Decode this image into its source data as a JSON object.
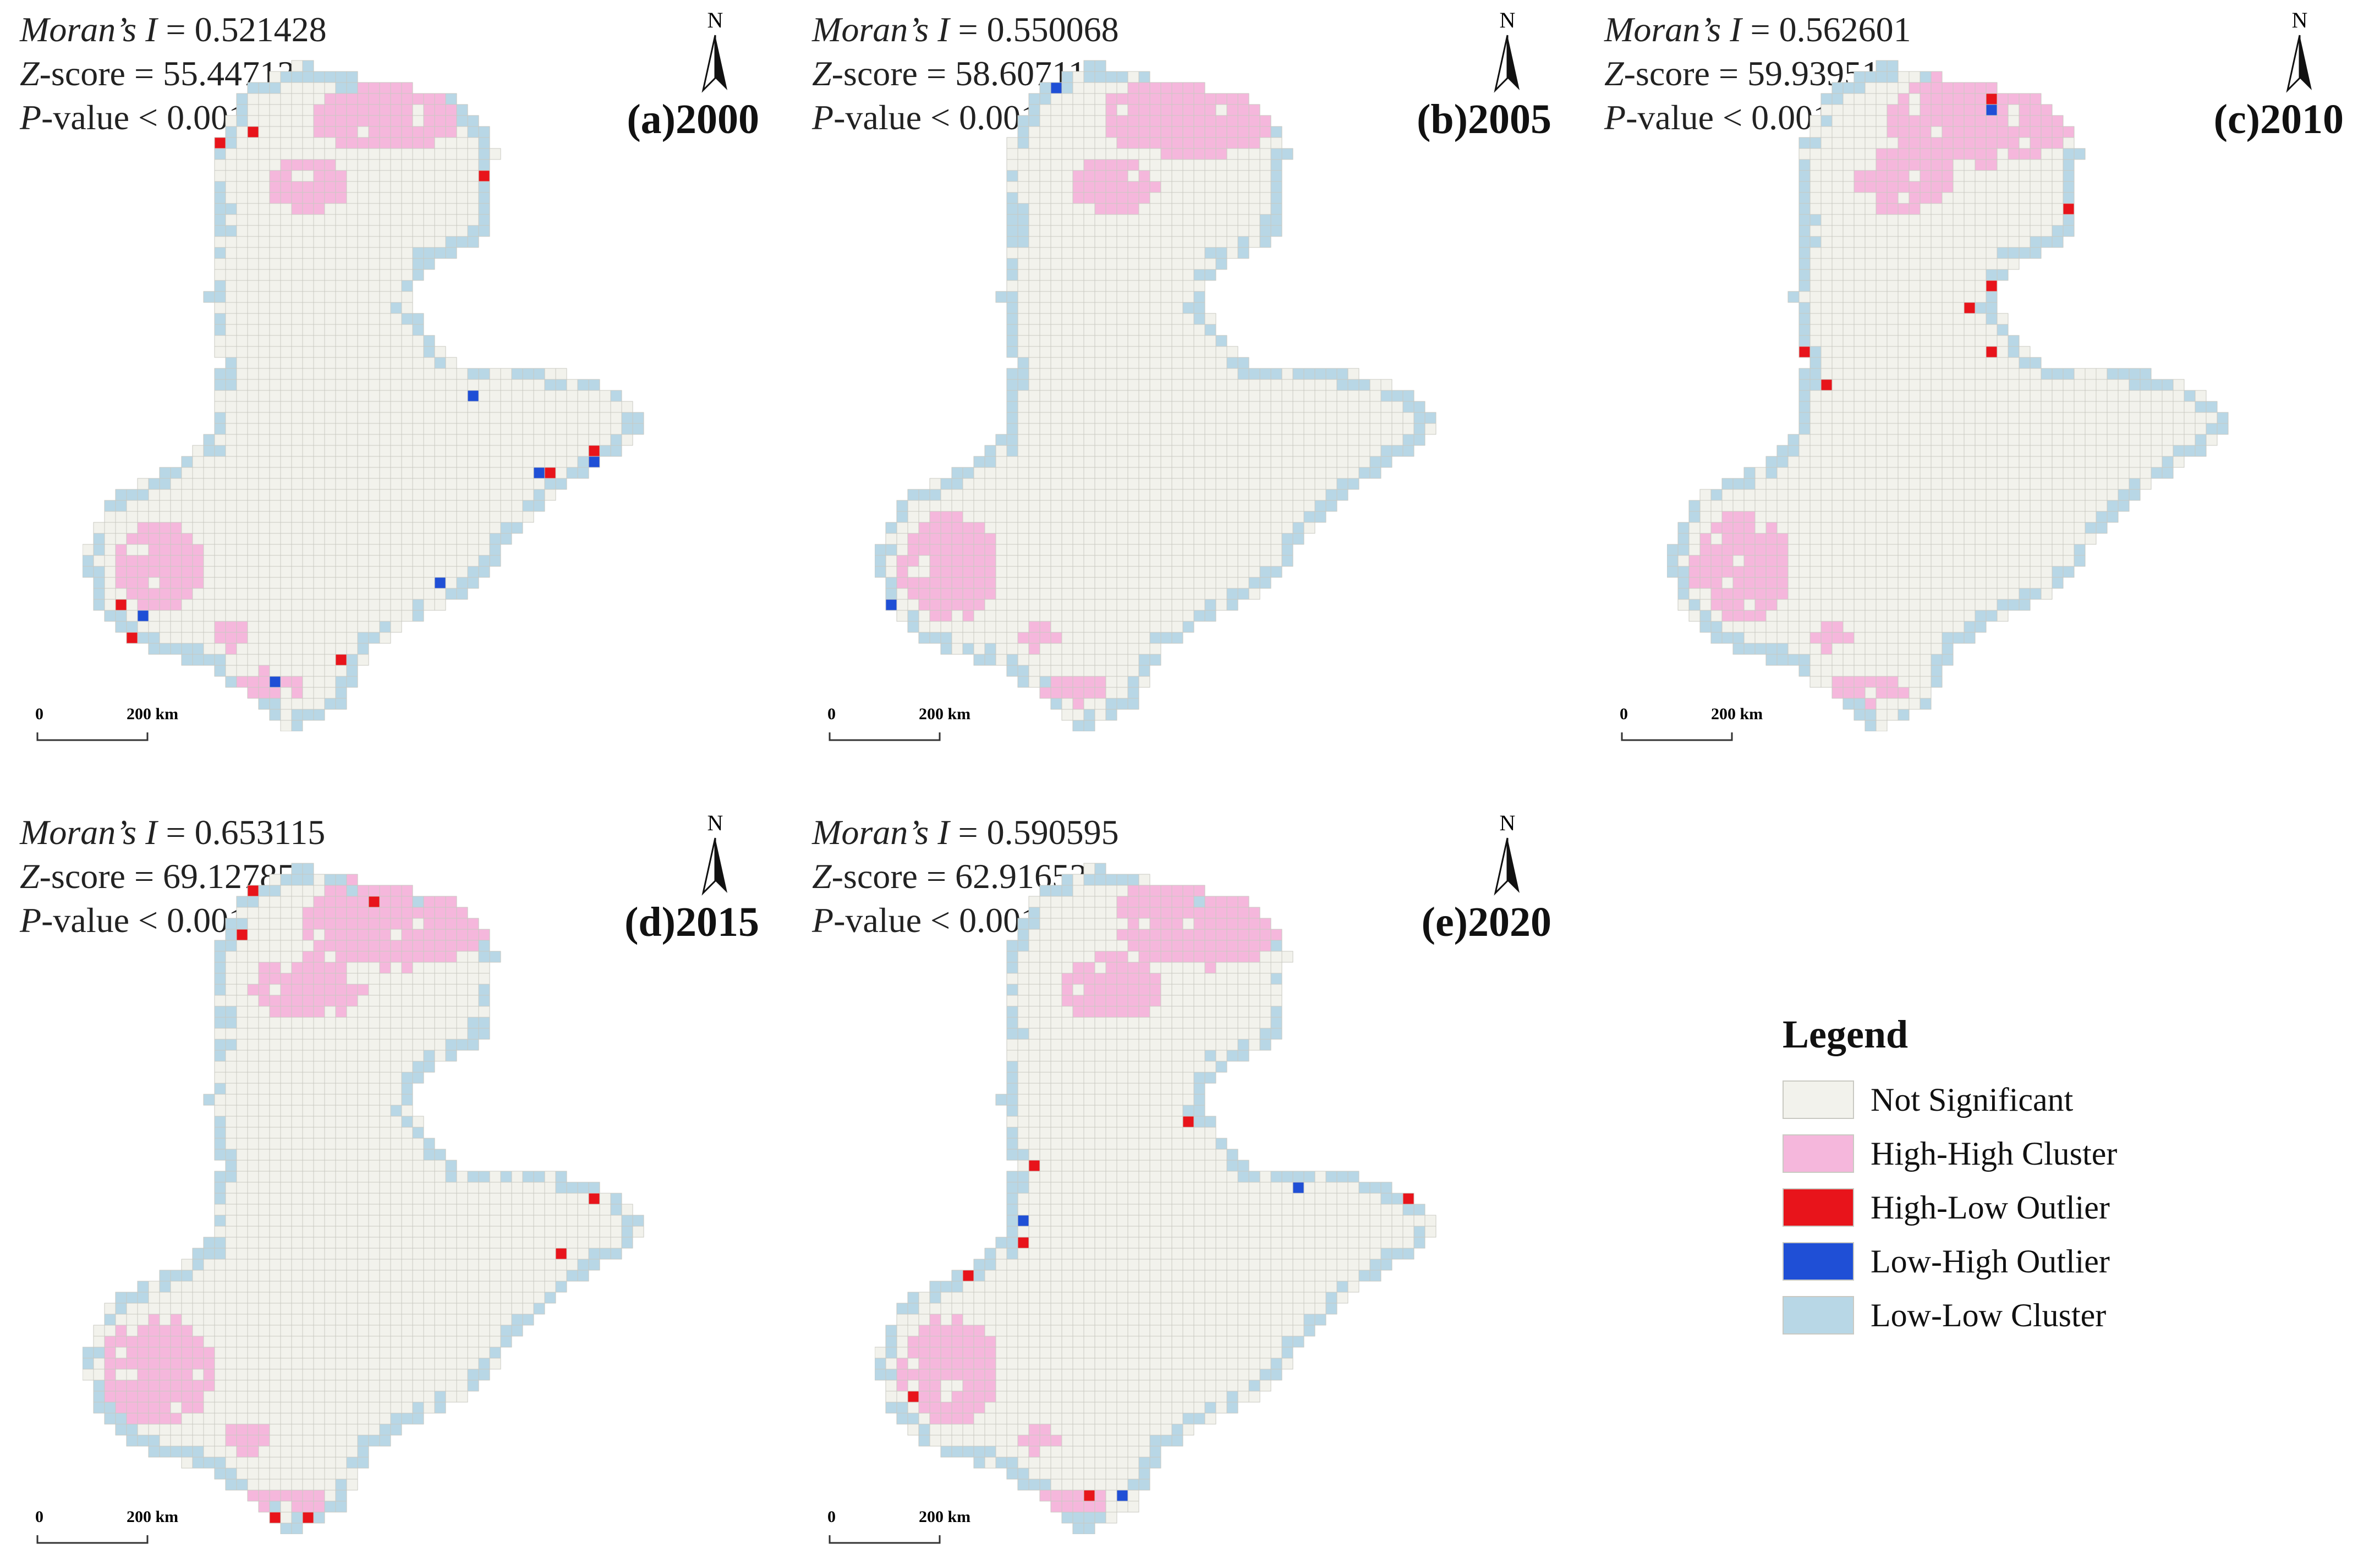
{
  "panels": [
    {
      "label": "(a)2000",
      "moran_label": "Moran’s I",
      "moran": "0.521428",
      "z_label": "Z-score",
      "z": "55.447135",
      "p_label": "P-value",
      "p": "< 0.001"
    },
    {
      "label": "(b)2005",
      "moran_label": "Moran’s I",
      "moran": "0.550068",
      "z_label": "Z-score",
      "z": "58.607119",
      "p_label": "P-value",
      "p": "< 0.001"
    },
    {
      "label": "(c)2010",
      "moran_label": "Moran’s I",
      "moran": "0.562601",
      "z_label": "Z-score",
      "z": "59.939515",
      "p_label": "P-value",
      "p": "< 0.001"
    },
    {
      "label": "(d)2015",
      "moran_label": "Moran’s I",
      "moran": "0.653115",
      "z_label": "Z-score",
      "z": "69.127851",
      "p_label": "P-value",
      "p": "< 0.001"
    },
    {
      "label": "(e)2020",
      "moran_label": "Moran’s I",
      "moran": "0.590595",
      "z_label": "Z-score",
      "z": "62.916532",
      "p_label": "P-value",
      "p": "< 0.001"
    }
  ],
  "north_label": "N",
  "scale": {
    "start": "0",
    "end": "200 km"
  },
  "legend": {
    "title": "Legend",
    "items": [
      {
        "label": "Not Significant",
        "color": "#f2f2ec"
      },
      {
        "label": "High-High Cluster",
        "color": "#f5b7dc"
      },
      {
        "label": "High-Low Outlier",
        "color": "#e8141b"
      },
      {
        "label": "Low-High Outlier",
        "color": "#1f4fd6"
      },
      {
        "label": "Low-Low Cluster",
        "color": "#b8d7e6"
      }
    ]
  }
}
